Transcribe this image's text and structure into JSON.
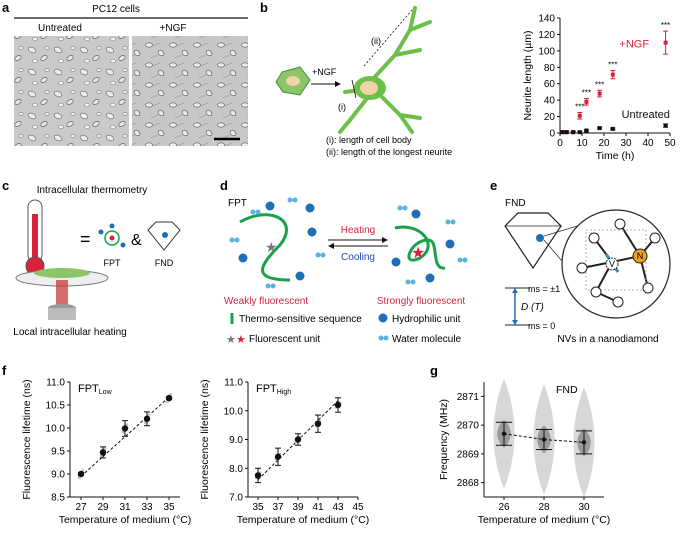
{
  "figure": {
    "panel_a": {
      "label": "a",
      "header": "PC12 cells",
      "img_left_label": "Untreated",
      "img_right_label": "+NGF"
    },
    "panel_b": {
      "label": "b",
      "arrow_label": "+NGF",
      "marker_i": "(i)",
      "marker_ii": "(ii)",
      "legend_i": "(i): length of cell body",
      "legend_ii": "(ii): length of the longest neurite",
      "plot_ngf_label": "+NGF",
      "plot_untreated_label": "Untreated",
      "sig": "***"
    },
    "panel_c": {
      "label": "c",
      "top_text": "Intracellular thermometry",
      "eq": "=",
      "amp": "&",
      "fpt_label": "FPT",
      "fnd_label": "FND",
      "bottom_text": "Local intracellular heating"
    },
    "panel_d": {
      "label": "d",
      "title": "FPT",
      "heating": "Heating",
      "cooling": "Cooling",
      "weak": "Weakly fluorescent",
      "strong": "Strongly fluorescent",
      "leg_thermo": "Thermo-sensitive sequence",
      "leg_hydro": "Hydrophilic unit",
      "leg_fluor": "Fluorescent unit",
      "leg_water": "Water molecule"
    },
    "panel_e": {
      "label": "e",
      "title": "FND",
      "ms1": "ms = ±1",
      "ms0": "ms = 0",
      "dt": "D (T)",
      "v": "V",
      "n": "N",
      "caption": "NVs in a nanodiamond"
    },
    "panel_f": {
      "label": "f"
    },
    "panel_g": {
      "label": "g",
      "title": "FND"
    }
  },
  "chart_data": [
    {
      "type": "scatter",
      "panel": "b",
      "xlabel": "Time (h)",
      "ylabel": "Neurite length (µm)",
      "xlim": [
        0,
        50
      ],
      "ylim": [
        0,
        140
      ],
      "xticks": [
        0,
        10,
        20,
        30,
        40,
        50
      ],
      "yticks": [
        0,
        20,
        40,
        60,
        80,
        100,
        120,
        140
      ],
      "series": [
        {
          "name": "+NGF",
          "color": "#d6233a",
          "x": [
            1,
            3,
            6,
            9,
            12,
            18,
            24,
            48
          ],
          "y": [
            1,
            1,
            1,
            21,
            38,
            48,
            71,
            110
          ],
          "err": [
            1,
            1,
            1,
            4,
            4,
            4,
            5,
            14
          ]
        },
        {
          "name": "Untreated",
          "color": "#111111",
          "x": [
            1,
            3,
            6,
            9,
            12,
            18,
            24,
            48
          ],
          "y": [
            1,
            1,
            1,
            1,
            3,
            6,
            5,
            9
          ],
          "err": [
            1,
            1,
            1,
            1,
            1,
            1,
            1,
            2
          ]
        }
      ],
      "significance_x": [
        9,
        12,
        18,
        24,
        48
      ]
    },
    {
      "type": "scatter",
      "panel": "f-low",
      "title": "FPT",
      "title_sub": "Low",
      "xlabel": "Temperature of medium (°C)",
      "ylabel": "Fluorescence lifetime (ns)",
      "xlim": [
        26,
        36
      ],
      "ylim": [
        8.5,
        11.0
      ],
      "xticks": [
        27,
        29,
        31,
        33,
        35
      ],
      "yticks": [
        8.5,
        9.0,
        9.5,
        10.0,
        10.5,
        11.0
      ],
      "x": [
        27,
        29,
        31,
        33,
        35
      ],
      "y": [
        9.0,
        9.47,
        9.99,
        10.2,
        10.65
      ],
      "err": [
        0.03,
        0.12,
        0.17,
        0.15,
        0.03
      ],
      "fit": [
        [
          27,
          8.95
        ],
        [
          35,
          10.67
        ]
      ]
    },
    {
      "type": "scatter",
      "panel": "f-high",
      "title": "FPT",
      "title_sub": "High",
      "xlabel": "Temperature of medium (°C)",
      "ylabel": "Fluorescence lifetime (ns)",
      "xlim": [
        34,
        45
      ],
      "ylim": [
        7.0,
        11.0
      ],
      "xticks": [
        35,
        37,
        39,
        41,
        43,
        45
      ],
      "yticks": [
        7.0,
        8.0,
        9.0,
        10.0,
        11.0
      ],
      "x": [
        35,
        37,
        39,
        41,
        43
      ],
      "y": [
        7.75,
        8.4,
        9.0,
        9.55,
        10.2
      ],
      "err": [
        0.25,
        0.3,
        0.2,
        0.3,
        0.25
      ],
      "fit": [
        [
          35,
          7.6
        ],
        [
          43,
          10.35
        ]
      ]
    },
    {
      "type": "scatter",
      "panel": "g",
      "xlabel": "Temperature of medium (°C)",
      "ylabel": "Frequency (MHz)",
      "xlim": [
        25,
        31
      ],
      "ylim": [
        2867.5,
        2871.5
      ],
      "xticks": [
        26,
        28,
        30
      ],
      "yticks": [
        2868,
        2869,
        2870,
        2871
      ],
      "x": [
        26,
        28,
        30
      ],
      "y": [
        2869.7,
        2869.5,
        2869.4
      ],
      "err": [
        0.4,
        0.35,
        0.4
      ]
    }
  ]
}
